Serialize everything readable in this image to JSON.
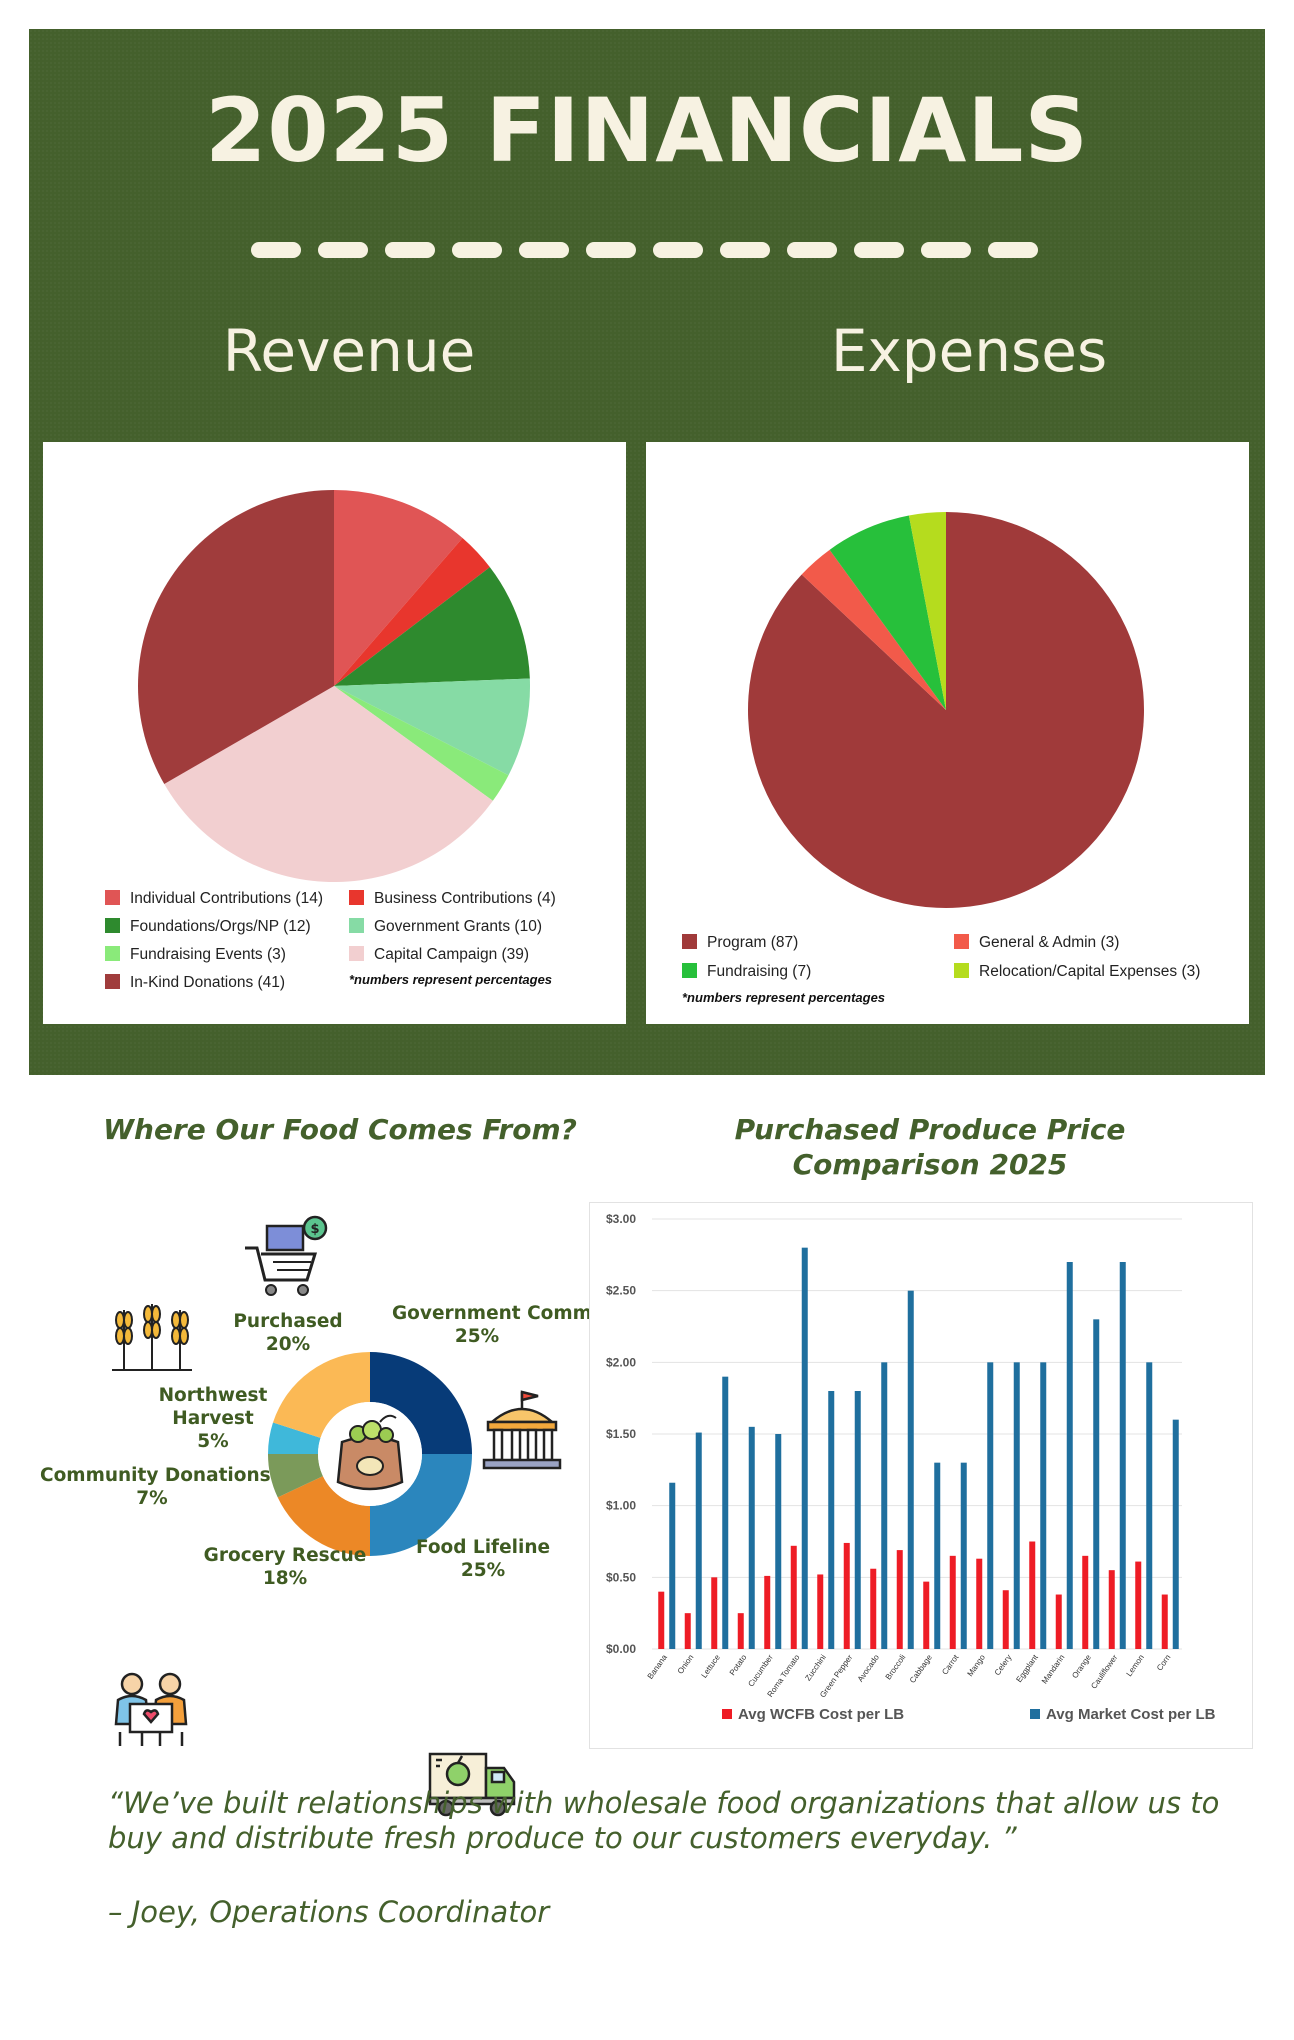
{
  "header": {
    "title": "2025 FINANCIALS",
    "revenue_heading": "Revenue",
    "expenses_heading": "Expenses"
  },
  "chart_data": [
    {
      "type": "pie",
      "title": "Revenue",
      "slices": [
        {
          "label": "Individual Contributions (14)",
          "value": 14,
          "color": "#e05555"
        },
        {
          "label": "Business Contributions (4)",
          "value": 4,
          "color": "#e8362d"
        },
        {
          "label": "Foundations/Orgs/NP (12)",
          "value": 12,
          "color": "#2e8a2e"
        },
        {
          "label": "Government Grants (10)",
          "value": 10,
          "color": "#86dba5"
        },
        {
          "label": "Fundraising Events (3)",
          "value": 3,
          "color": "#8aea7a"
        },
        {
          "label": "Capital Campaign (39)",
          "value": 39,
          "color": "#f2cfd0"
        },
        {
          "label": "In-Kind Donations (41)",
          "value": 41,
          "color": "#a03c3c"
        }
      ],
      "note": "*numbers represent percentages"
    },
    {
      "type": "pie",
      "title": "Expenses",
      "slices": [
        {
          "label": "Program (87)",
          "value": 87,
          "color": "#a03a3a"
        },
        {
          "label": "General & Admin (3)",
          "value": 3,
          "color": "#f25a4a"
        },
        {
          "label": "Fundraising (7)",
          "value": 7,
          "color": "#27c03b"
        },
        {
          "label": "Relocation/Capital Expenses (3)",
          "value": 3,
          "color": "#b5dc1e"
        }
      ],
      "note": "*numbers represent percentages"
    },
    {
      "type": "pie",
      "title": "Where Our Food Comes From?",
      "slices": [
        {
          "label": "Government Commodities",
          "pct": "25%",
          "value": 25,
          "color": "#073b78"
        },
        {
          "label": "Food Lifeline",
          "pct": "25%",
          "value": 25,
          "color": "#2b86bd"
        },
        {
          "label": "Grocery Rescue",
          "pct": "18%",
          "value": 18,
          "color": "#ec8826"
        },
        {
          "label": "Community Donations",
          "pct": "7%",
          "value": 7,
          "color": "#7b9a5a"
        },
        {
          "label": "Northwest Harvest",
          "pct": "5%",
          "value": 5,
          "color": "#3fb8da"
        },
        {
          "label": "Purchased",
          "pct": "20%",
          "value": 20,
          "color": "#fbb955"
        }
      ]
    },
    {
      "type": "bar",
      "title": "Purchased Produce Price Comparison 2025",
      "categories": [
        "Banana",
        "Onion",
        "Lettuce",
        "Potato",
        "Cucumber",
        "Roma Tomato",
        "Zucchini",
        "Green Pepper",
        "Avocado",
        "Broccoli",
        "Cabbage",
        "Carrot",
        "Mango",
        "Celery",
        "Eggplant",
        "Mandarin",
        "Orange",
        "Cauliflower",
        "Lemon",
        "Corn"
      ],
      "series": [
        {
          "name": "Avg WCFB Cost per LB",
          "color": "#ee1c25",
          "values": [
            0.4,
            0.25,
            0.5,
            0.25,
            0.51,
            0.72,
            0.52,
            0.74,
            0.56,
            0.69,
            0.47,
            0.65,
            0.63,
            0.41,
            0.75,
            0.38,
            0.65,
            0.55,
            0.61,
            0.38
          ]
        },
        {
          "name": "Avg Market Cost per LB",
          "color": "#1f6f9e",
          "values": [
            1.16,
            1.51,
            1.9,
            1.55,
            1.5,
            2.8,
            1.8,
            1.8,
            2.0,
            2.5,
            1.3,
            1.3,
            2.0,
            2.0,
            2.0,
            2.7,
            2.3,
            2.7,
            2.0,
            1.6
          ]
        }
      ],
      "yticks": [
        "$3.00",
        "$2.50",
        "$2.00",
        "$1.50",
        "$1.00",
        "$0.50",
        "$0.00"
      ],
      "ylim": [
        0,
        3
      ]
    }
  ],
  "quote": {
    "text": "“We’ve built relationships with wholesale food organizations that allow us to buy and distribute fresh produce to our customers everyday. ”",
    "attribution": "– Joey, Operations Coordinator"
  }
}
